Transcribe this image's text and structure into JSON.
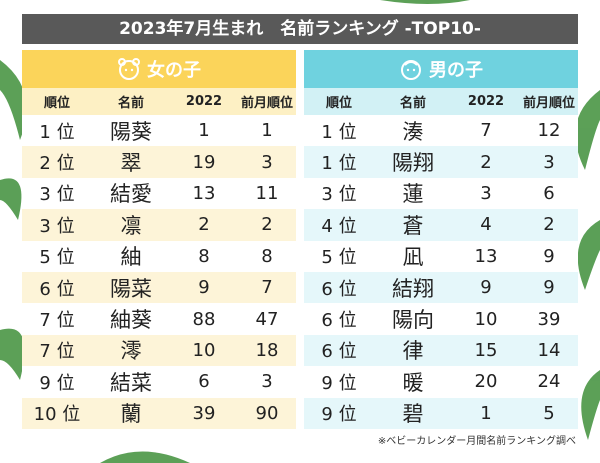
{
  "title": "2023年7月生まれ　名前ランキング -TOP10-",
  "girls": {
    "label": "女の子",
    "columns": [
      "順位",
      "名前",
      "2022",
      "前月順位"
    ],
    "rows": [
      [
        "1 位",
        "陽葵",
        1,
        1
      ],
      [
        "2 位",
        "翠",
        19,
        3
      ],
      [
        "3 位",
        "結愛",
        13,
        11
      ],
      [
        "3 位",
        "凛",
        2,
        2
      ],
      [
        "5 位",
        "紬",
        8,
        8
      ],
      [
        "6 位",
        "陽菜",
        9,
        7
      ],
      [
        "7 位",
        "紬葵",
        88,
        47
      ],
      [
        "7 位",
        "澪",
        10,
        18
      ],
      [
        "9 位",
        "結菜",
        6,
        3
      ],
      [
        "10 位",
        "蘭",
        39,
        90
      ]
    ]
  },
  "boys": {
    "label": "男の子",
    "columns": [
      "順位",
      "名前",
      "2022",
      "前月順位"
    ],
    "rows": [
      [
        "1 位",
        "湊",
        7,
        12
      ],
      [
        "1 位",
        "陽翔",
        2,
        3
      ],
      [
        "3 位",
        "蓮",
        3,
        6
      ],
      [
        "4 位",
        "蒼",
        4,
        2
      ],
      [
        "5 位",
        "凪",
        13,
        9
      ],
      [
        "6 位",
        "結翔",
        9,
        9
      ],
      [
        "6 位",
        "陽向",
        10,
        39
      ],
      [
        "6 位",
        "律",
        15,
        14
      ],
      [
        "9 位",
        "暖",
        20,
        24
      ],
      [
        "9 位",
        "碧",
        1,
        5
      ]
    ]
  },
  "note": "※ベビーカレンダー月間名前ランキング調べ"
}
